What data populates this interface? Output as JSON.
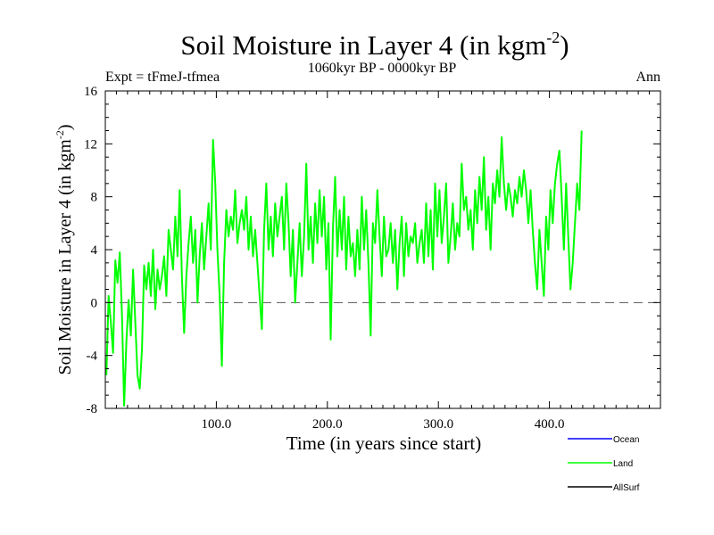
{
  "chart_data": {
    "type": "line",
    "title": "Soil Moisture in Layer 4 (in kgm",
    "title_sup": "-2",
    "title_close": ")",
    "subtitle": "1060kyr BP - 0000kyr BP",
    "left_label": "Expt = tFmeJ-tfmea",
    "right_label": "Ann",
    "xlabel": "Time (in years since start)",
    "ylabel": "Soil Moisture in Layer 4 (in kgm",
    "ylabel_sup": "-2",
    "ylabel_close": ")",
    "xlim": [
      0,
      500
    ],
    "ylim": [
      -8,
      16
    ],
    "xticks": [
      100,
      200,
      300,
      400
    ],
    "xtick_labels": [
      "100.0",
      "200.0",
      "300.0",
      "400.0"
    ],
    "yticks": [
      -8,
      -4,
      0,
      4,
      8,
      12,
      16
    ],
    "ytick_labels": [
      "-8",
      "-4",
      "0",
      "4",
      "8",
      "12",
      "16"
    ],
    "zero_line": 0,
    "legend": [
      {
        "name": "Ocean",
        "color": "#0000ff"
      },
      {
        "name": "Land",
        "color": "#00ff00"
      },
      {
        "name": "AllSurf",
        "color": "#000000"
      }
    ],
    "series": [
      {
        "name": "Land",
        "color": "#00ff00",
        "x_start": 1,
        "x_step": 2,
        "values": [
          -5.5,
          0.5,
          -1.5,
          -3.8,
          3.2,
          1.5,
          3.8,
          -1.0,
          -7.8,
          -3.0,
          0.2,
          -2.5,
          2.5,
          -1.5,
          -5.5,
          -6.5,
          -3.5,
          2.8,
          1.0,
          3.0,
          0.5,
          4.0,
          -0.5,
          2.5,
          1.0,
          2.0,
          3.5,
          0.5,
          5.5,
          4.0,
          2.5,
          6.5,
          3.5,
          8.5,
          2.0,
          -2.3,
          2.0,
          4.5,
          6.5,
          3.0,
          5.5,
          0.0,
          3.5,
          6.0,
          2.5,
          5.0,
          7.5,
          4.0,
          12.3,
          9.0,
          4.0,
          0.5,
          -4.8,
          3.0,
          7.0,
          5.0,
          6.5,
          5.5,
          8.5,
          4.5,
          6.0,
          7.0,
          5.5,
          8.0,
          4.0,
          6.5,
          3.5,
          5.5,
          3.0,
          0.5,
          -2.0,
          5.5,
          9.0,
          4.0,
          6.5,
          3.5,
          7.5,
          5.0,
          6.5,
          8.0,
          4.0,
          9.0,
          6.0,
          2.0,
          5.5,
          0.0,
          3.0,
          6.0,
          2.0,
          5.0,
          10.5,
          4.0,
          6.5,
          3.0,
          7.5,
          4.5,
          8.5,
          5.0,
          8.0,
          2.5,
          6.0,
          -2.8,
          5.5,
          9.5,
          3.5,
          7.0,
          4.0,
          8.0,
          2.5,
          6.5,
          3.5,
          4.5,
          2.0,
          5.5,
          2.5,
          8.0,
          4.0,
          7.0,
          3.0,
          -2.5,
          6.0,
          4.5,
          8.5,
          5.0,
          2.0,
          6.5,
          3.5,
          4.0,
          6.0,
          3.0,
          5.5,
          1.0,
          4.5,
          6.5,
          2.0,
          6.0,
          3.5,
          5.0,
          4.5,
          6.0,
          3.0,
          4.5,
          5.5,
          3.0,
          7.5,
          3.5,
          7.0,
          2.5,
          9.0,
          5.0,
          8.5,
          4.5,
          6.5,
          9.0,
          3.0,
          5.0,
          7.5,
          4.0,
          6.0,
          5.0,
          10.5,
          7.0,
          8.0,
          5.5,
          7.0,
          4.0,
          8.5,
          6.0,
          9.5,
          7.0,
          11.0,
          5.5,
          8.0,
          4.0,
          9.0,
          7.5,
          10.0,
          8.0,
          12.5,
          9.0,
          7.0,
          9.0,
          8.0,
          6.5,
          8.5,
          7.5,
          9.5,
          8.0,
          10.0,
          8.5,
          6.0,
          8.5,
          5.5,
          3.0,
          1.0,
          5.5,
          3.0,
          0.5,
          6.5,
          4.0,
          8.5,
          6.0,
          9.0,
          10.5,
          11.5,
          8.0,
          4.0,
          9.0,
          5.0,
          1.0,
          3.0,
          6.0,
          9.0,
          7.0,
          13.0
        ]
      }
    ]
  }
}
